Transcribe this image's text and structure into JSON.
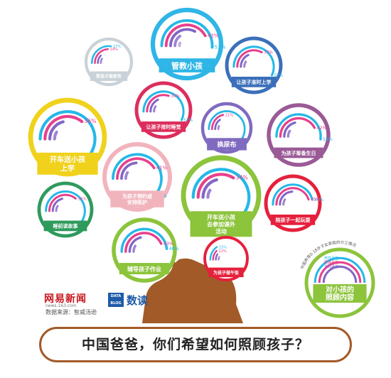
{
  "chart_data": {
    "type": "radial-bar",
    "items": [
      {
        "label": "管教小孩",
        "values": [
          51,
          42,
          33,
          15,
          6
        ]
      },
      {
        "label": "帮孩子做家务",
        "values": [
          27,
          24,
          12,
          9,
          0
        ]
      },
      {
        "label": "让孩子准时上学",
        "values": [
          57,
          33,
          18,
          9,
          0
        ]
      },
      {
        "label": "让孩子按时睡觉",
        "values": [
          57,
          30,
          18,
          9,
          0
        ]
      },
      {
        "label": "开车送小孩上学",
        "values": [
          67,
          36,
          21,
          9,
          0
        ]
      },
      {
        "label": "换尿布",
        "values": [
          76,
          21,
          15,
          6,
          0
        ]
      },
      {
        "label": "为孩子筹备生日",
        "values": [
          52,
          42,
          21,
          9,
          0
        ]
      },
      {
        "label": "为孩子预约或安排医护",
        "values": [
          63,
          41,
          24,
          9,
          0
        ]
      },
      {
        "label": "开车送小孩去参加课外活动",
        "values": [
          68,
          34,
          21,
          9,
          0
        ]
      },
      {
        "label": "睡前读故事",
        "values": [
          68,
          36,
          21,
          9,
          0
        ]
      },
      {
        "label": "陪孩子一起玩耍",
        "values": [
          46,
          45,
          24,
          9,
          0
        ]
      },
      {
        "label": "辅导孩子作业",
        "values": [
          48,
          43,
          21,
          9,
          0
        ]
      },
      {
        "label": "为孩子做午饭",
        "values": [
          15,
          12,
          9,
          6,
          0
        ]
      }
    ],
    "legend": {
      "labels": [
        "男性承担",
        "配偶承担",
        "共同承担"
      ],
      "title": "对小孩的照顾内容",
      "caption": "中国养育0-18岁子女家庭的分工情况"
    }
  },
  "branding": {
    "netease": "网易新闻",
    "netease_sub": "news.163.com",
    "datablog": "DATA BLOG",
    "shudu": "数读",
    "source": "数据来源：智威汤逊"
  },
  "title": "中国爸爸，你们希望如何照顾孩子？"
}
